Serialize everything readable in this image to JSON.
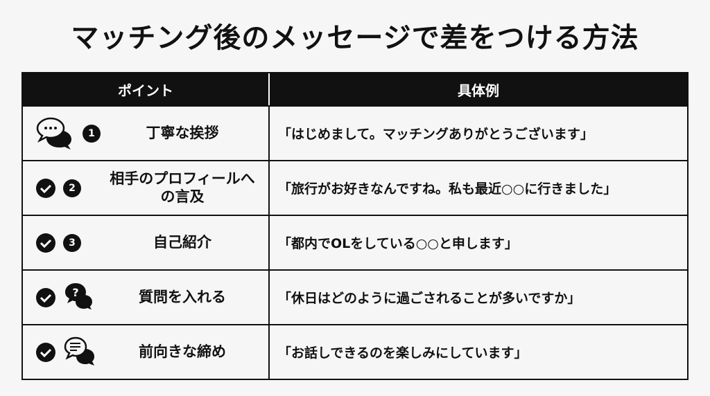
{
  "title": "マッチング後のメッセージで差をつける方法",
  "table": {
    "headers": [
      "ポイント",
      "具体例"
    ],
    "rows": [
      {
        "icon": "chat-dots-icon",
        "number": "1",
        "point": "丁寧な挨拶",
        "example": "「はじめまして。マッチングありがとうございます」"
      },
      {
        "icon": "check-circle-icon",
        "number": "2",
        "point": "相手のプロフィールへの言及",
        "example": "「旅行がお好きなんですね。私も最近○○に行きました」"
      },
      {
        "icon": "check-circle-icon",
        "number": "3",
        "point": "自己紹介",
        "example": "「都内でOLをしている○○と申します」"
      },
      {
        "icon": "check-circle-icon",
        "icon2": "chat-question-icon",
        "point": "質問を入れる",
        "example": "「休日はどのように過ごされることが多いですか」"
      },
      {
        "icon": "check-circle-icon",
        "icon2": "chat-lines-icon",
        "point": "前向きな締め",
        "example": "「お話しできるのを楽しみにしています」"
      }
    ]
  },
  "colors": {
    "ink": "#111111",
    "background": "#f6f6f6"
  }
}
